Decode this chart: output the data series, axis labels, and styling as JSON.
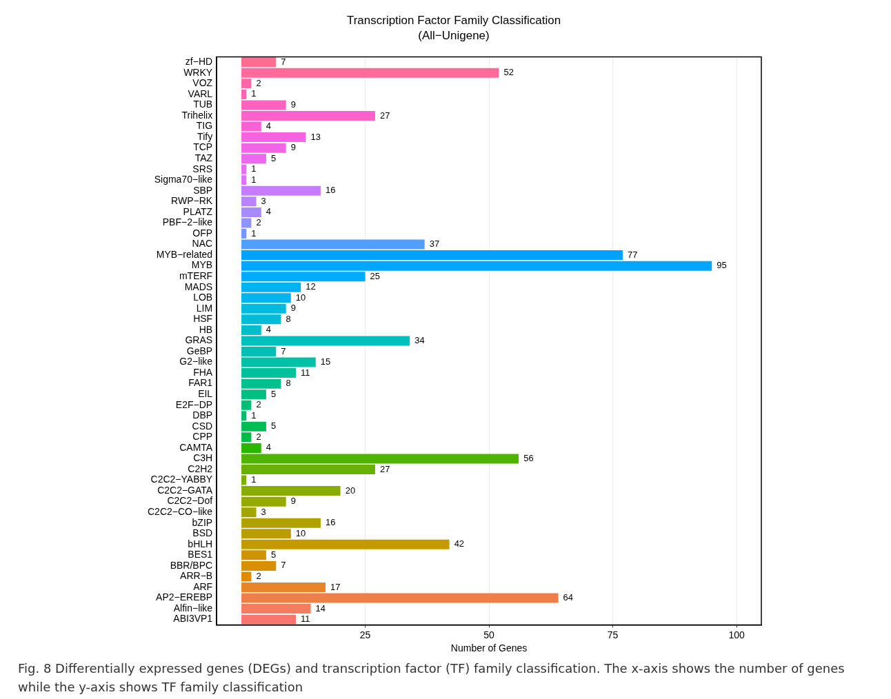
{
  "chart_data": {
    "type": "bar",
    "orientation": "horizontal",
    "title": "Transcription Factor Family Classification\n(All−Unigene)",
    "xlabel": "Number of Genes",
    "categories": [
      "zf−HD",
      "WRKY",
      "VOZ",
      "VARL",
      "TUB",
      "Trihelix",
      "TIG",
      "Tify",
      "TCP",
      "TAZ",
      "SRS",
      "Sigma70−like",
      "SBP",
      "RWP−RK",
      "PLATZ",
      "PBF−2−like",
      "OFP",
      "NAC",
      "MYB−related",
      "MYB",
      "mTERF",
      "MADS",
      "LOB",
      "LIM",
      "HSF",
      "HB",
      "GRAS",
      "GeBP",
      "G2−like",
      "FHA",
      "FAR1",
      "EIL",
      "E2F−DP",
      "DBP",
      "CSD",
      "CPP",
      "CAMTA",
      "C3H",
      "C2H2",
      "C2C2−YABBY",
      "C2C2−GATA",
      "C2C2−Dof",
      "C2C2−CO−like",
      "bZIP",
      "BSD",
      "bHLH",
      "BES1",
      "BBR/BPC",
      "ARR−B",
      "ARF",
      "AP2−EREBP",
      "Alfin−like",
      "ABI3VP1"
    ],
    "values": [
      7,
      52,
      2,
      1,
      9,
      27,
      4,
      13,
      9,
      5,
      1,
      1,
      16,
      3,
      4,
      2,
      1,
      37,
      77,
      95,
      25,
      12,
      10,
      9,
      8,
      4,
      34,
      7,
      15,
      11,
      8,
      5,
      2,
      1,
      5,
      2,
      4,
      56,
      27,
      1,
      20,
      9,
      3,
      16,
      10,
      42,
      5,
      7,
      2,
      17,
      64,
      14,
      11
    ],
    "colors": [
      "#ff6c91",
      "#ff6a9a",
      "#ff66a8",
      "#ff63b4",
      "#ff61bf",
      "#fe61ca",
      "#fb61d4",
      "#f763de",
      "#f265e7",
      "#ec69ef",
      "#e56df3",
      "#dd71fa",
      "#c77cff",
      "#b983ff",
      "#a58bff",
      "#9093ff",
      "#7099ff",
      "#529eff",
      "#00a2ff",
      "#00a6ff",
      "#00acfc",
      "#00b1f4",
      "#00b5eb",
      "#00b9e1",
      "#00bcd6",
      "#00beca",
      "#00c0be",
      "#00c0b3",
      "#00c1a7",
      "#00c19a",
      "#00c08e",
      "#00c081",
      "#00bf74",
      "#00be67",
      "#00bd55",
      "#00bb45",
      "#2ab700",
      "#4eb400",
      "#65b200",
      "#78af00",
      "#88ac00",
      "#96a900",
      "#a3a500",
      "#b0a100",
      "#bb9d00",
      "#c59900",
      "#cf9400",
      "#d89000",
      "#e08a00",
      "#e88526",
      "#ef7f49",
      "#f47c5f",
      "#f8766d"
    ],
    "xlim": [
      -5,
      105
    ],
    "xticks": [
      25,
      50,
      75,
      100
    ],
    "grid": "x",
    "data_labels": true,
    "annotations": [
      "Fig. 8 Differentially expressed genes (DEGs) and transcription factor (TF) family classification. The x-axis shows the number of genes while the y-axis shows TF family classification"
    ]
  }
}
